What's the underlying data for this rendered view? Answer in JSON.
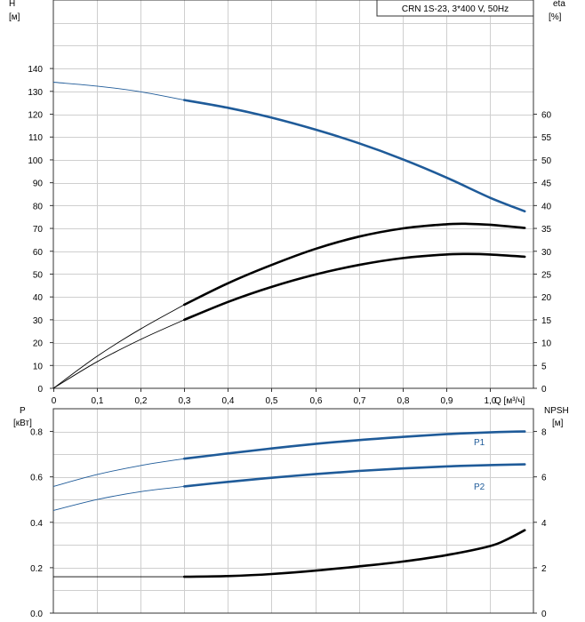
{
  "chart_data": [
    {
      "type": "line",
      "title": "CRN 1S-23, 3*400 V, 50Hz",
      "ylabel_left": "H",
      "ylabel_left_unit": "[м]",
      "ylabel_right": "eta",
      "ylabel_right_unit": "[%]",
      "xlabel": "Q [м³/ч]",
      "xlim": [
        0,
        1.1
      ],
      "ylim_left": [
        0,
        170
      ],
      "ylim_right": [
        0,
        85
      ],
      "x_ticks": [
        "0",
        "0,1",
        "0,2",
        "0,3",
        "0,4",
        "0,5",
        "0,6",
        "0,7",
        "0,8",
        "0,9",
        "1,0"
      ],
      "y_left_ticks": [
        "0",
        "10",
        "20",
        "30",
        "40",
        "50",
        "60",
        "70",
        "80",
        "90",
        "100",
        "110",
        "120",
        "130",
        "140"
      ],
      "y_right_ticks": [
        "0",
        "5",
        "10",
        "15",
        "20",
        "25",
        "30",
        "35",
        "40",
        "45",
        "50",
        "55",
        "60"
      ],
      "grid": true,
      "series": [
        {
          "axis": "left",
          "color": "#1f5b99",
          "x": [
            0,
            0.1,
            0.2,
            0.3,
            0.4,
            0.5,
            0.6,
            0.7,
            0.8,
            0.9,
            1.0,
            1.08
          ],
          "y": [
            134,
            132.3,
            129.8,
            126.2,
            122.8,
            118.5,
            113.3,
            107.3,
            100.3,
            92.3,
            83.5,
            77.5
          ],
          "operating_from": 0.3
        },
        {
          "axis": "right",
          "color": "#000000",
          "x": [
            0,
            0.1,
            0.2,
            0.3,
            0.4,
            0.5,
            0.6,
            0.7,
            0.8,
            0.9,
            0.95,
            1.0,
            1.08
          ],
          "y": [
            0,
            7,
            13,
            18.3,
            23,
            27,
            30.5,
            33.2,
            35,
            35.9,
            36,
            35.8,
            35.1
          ],
          "operating_from": 0.3
        },
        {
          "axis": "right",
          "color": "#000000",
          "x": [
            0,
            0.1,
            0.2,
            0.3,
            0.4,
            0.5,
            0.6,
            0.7,
            0.8,
            0.9,
            0.95,
            1.0,
            1.08
          ],
          "y": [
            0,
            5.8,
            10.7,
            15,
            18.9,
            22.2,
            24.9,
            27,
            28.5,
            29.3,
            29.4,
            29.3,
            28.8
          ],
          "operating_from": 0.3
        }
      ]
    },
    {
      "type": "line",
      "ylabel_left": "P",
      "ylabel_left_unit": "[кВт]",
      "ylabel_right": "NPSH",
      "ylabel_right_unit": "[м]",
      "xlim": [
        0,
        1.1
      ],
      "ylim_left": [
        0,
        0.9
      ],
      "ylim_right": [
        0,
        9
      ],
      "y_left_ticks": [
        "0.0",
        "0.2",
        "0.4",
        "0.6",
        "0.8"
      ],
      "y_right_ticks": [
        "0",
        "2",
        "4",
        "6",
        "8"
      ],
      "grid": true,
      "series": [
        {
          "name": "P1",
          "axis": "left",
          "color": "#1f5b99",
          "x": [
            0,
            0.1,
            0.2,
            0.3,
            0.4,
            0.5,
            0.6,
            0.7,
            0.8,
            0.9,
            1.0,
            1.08
          ],
          "y": [
            0.558,
            0.61,
            0.65,
            0.68,
            0.703,
            0.725,
            0.745,
            0.762,
            0.776,
            0.788,
            0.796,
            0.8
          ],
          "operating_from": 0.3
        },
        {
          "name": "P2",
          "axis": "left",
          "color": "#1f5b99",
          "x": [
            0,
            0.1,
            0.2,
            0.3,
            0.4,
            0.5,
            0.6,
            0.7,
            0.8,
            0.9,
            1.0,
            1.08
          ],
          "y": [
            0.452,
            0.5,
            0.535,
            0.558,
            0.578,
            0.596,
            0.612,
            0.626,
            0.637,
            0.646,
            0.652,
            0.655
          ],
          "operating_from": 0.3
        },
        {
          "axis": "right",
          "color": "#000000",
          "x": [
            0,
            0.1,
            0.2,
            0.3,
            0.4,
            0.5,
            0.6,
            0.7,
            0.8,
            0.9,
            1.0,
            1.04,
            1.08
          ],
          "y": [
            1.6,
            1.6,
            1.6,
            1.6,
            1.63,
            1.72,
            1.87,
            2.06,
            2.27,
            2.55,
            2.95,
            3.25,
            3.65
          ],
          "operating_from": 0.3
        }
      ]
    }
  ]
}
